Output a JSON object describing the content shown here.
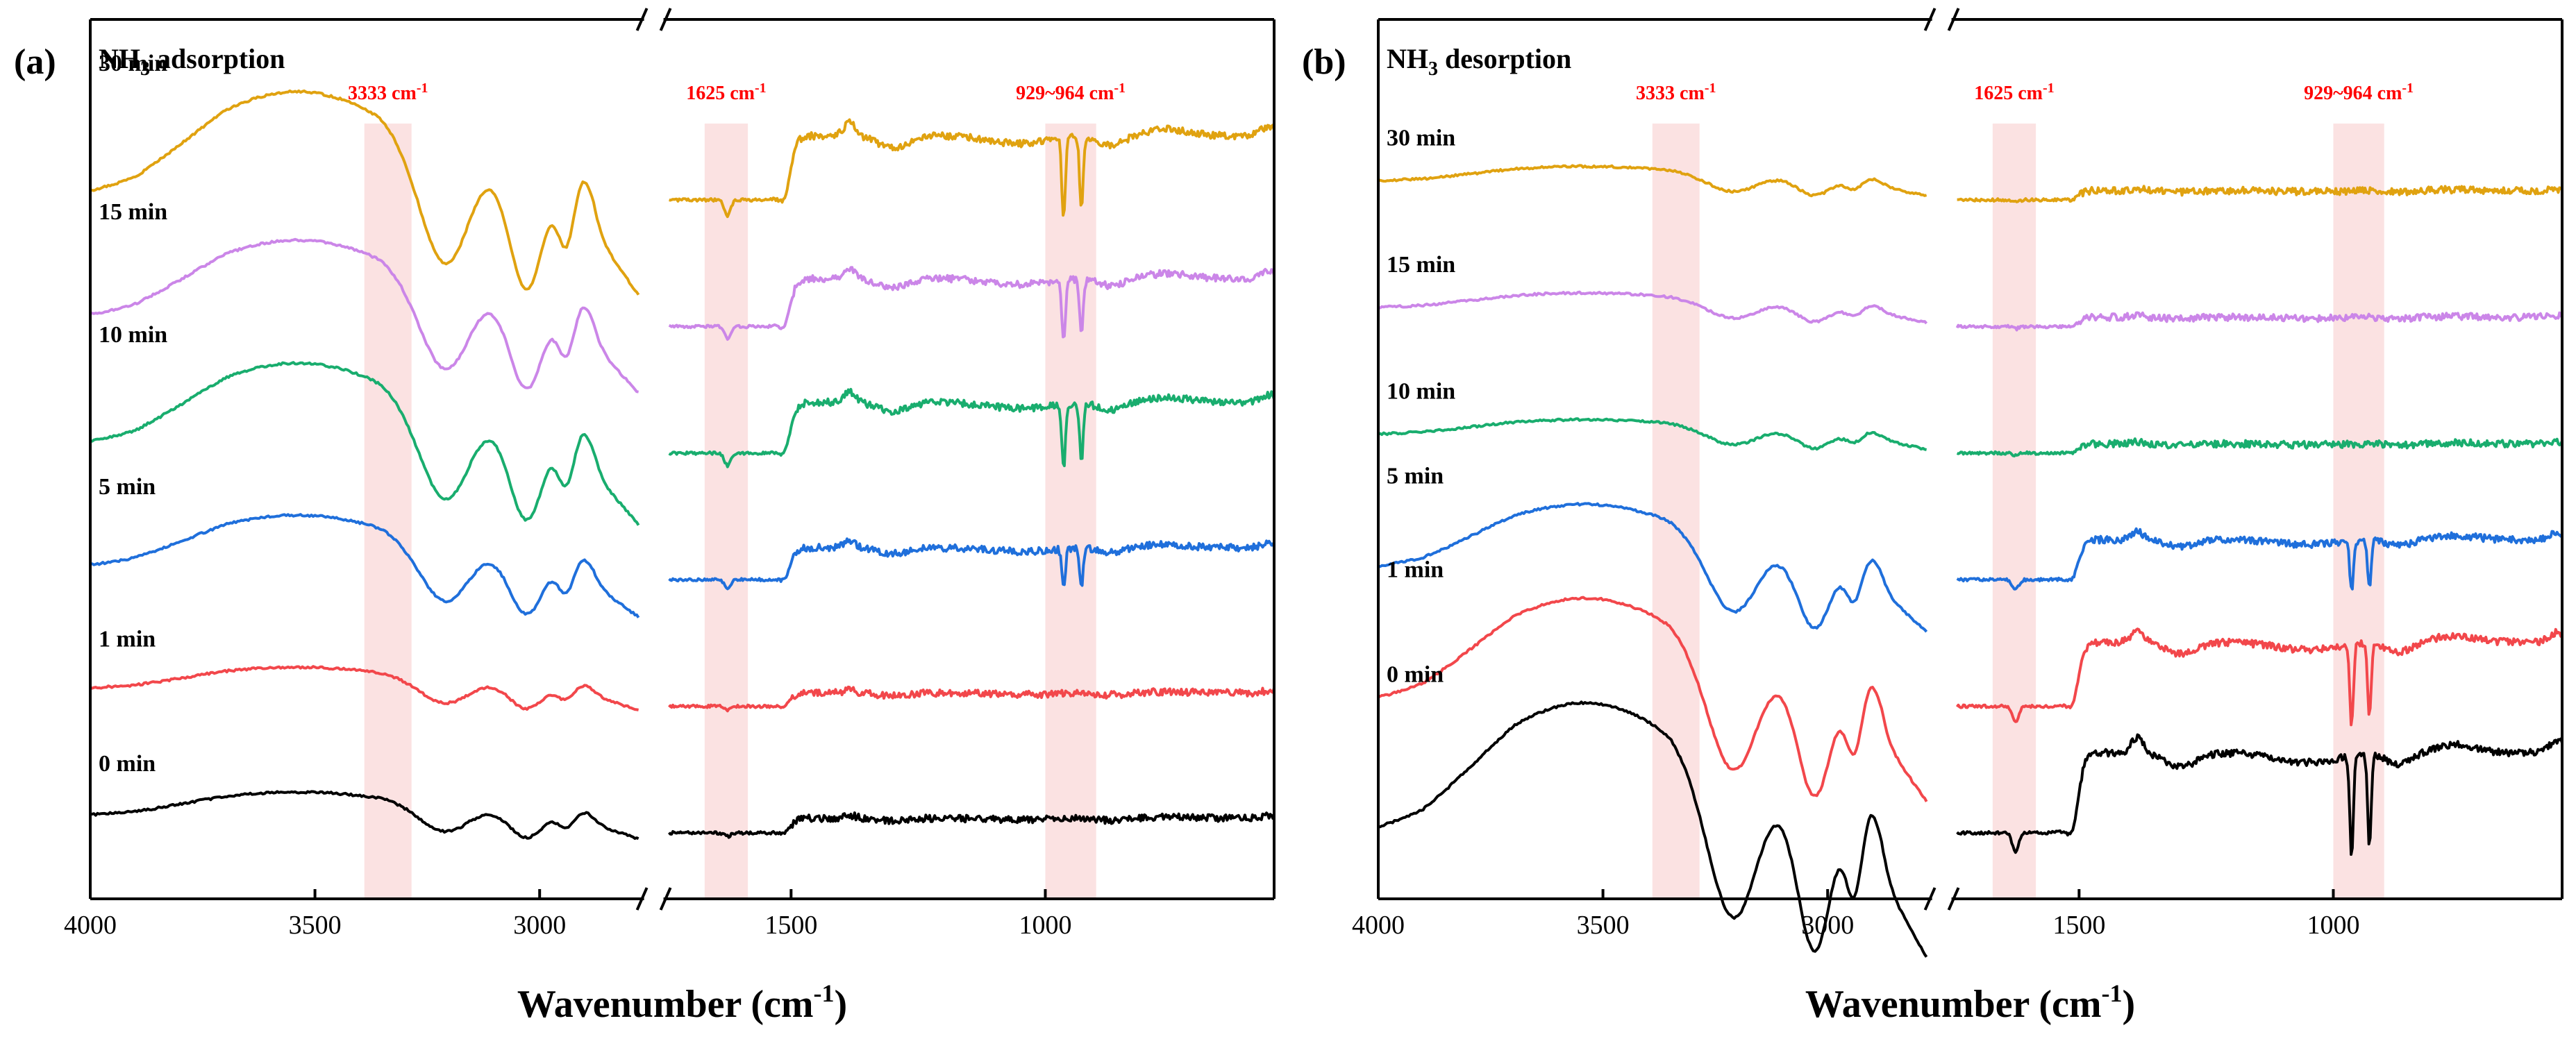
{
  "figure": {
    "panels": [
      {
        "panel_label": "(a)",
        "title": "NH3 adsorption",
        "title_main": "NH",
        "title_sub": "3",
        "title_rest": " adsorption"
      },
      {
        "panel_label": "(b)",
        "title": "NH3 desorption",
        "title_main": "NH",
        "title_sub": "3",
        "title_rest": " desorption"
      }
    ],
    "xlabel_main": "Wavenumber (cm",
    "xlabel_sup": "-1",
    "xlabel_close": ")",
    "colors": {
      "30 min": "#E0A210",
      "15 min": "#CB86E8",
      "10 min": "#19AD6E",
      "5 min": "#1F6FDB",
      "1 min": "#F2474B",
      "0 min": "#000000",
      "band": "#F9D6D6",
      "band_label": "#FF0000"
    }
  },
  "chart_data": [
    {
      "type": "line",
      "title": "(a) NH3 adsorption",
      "xlabel": "Wavenumber (cm-1)",
      "ylabel": "",
      "x_reversed": true,
      "broken_axis": {
        "left_range": [
          4000,
          2780
        ],
        "right_range": [
          1740,
          550
        ]
      },
      "xticks": [
        4000,
        3500,
        3000,
        1500,
        1000
      ],
      "bands": [
        {
          "label": "3333 cm-1",
          "label_main": "3333 cm",
          "label_sup": "-1",
          "range": [
            3390,
            3285
          ]
        },
        {
          "label": "1625 cm-1",
          "label_main": "1625 cm",
          "label_sup": "-1",
          "range": [
            1670,
            1585
          ]
        },
        {
          "label": "929~964 cm-1",
          "label_main": "929~964 cm",
          "label_sup": "-1",
          "range": [
            1000,
            900
          ]
        }
      ],
      "series": [
        {
          "name": "30 min",
          "offset": 5,
          "amplitude": 2.4
        },
        {
          "name": "15 min",
          "offset": 4,
          "amplitude": 1.8
        },
        {
          "name": "10 min",
          "offset": 3,
          "amplitude": 1.9
        },
        {
          "name": "5 min",
          "offset": 2,
          "amplitude": 1.2
        },
        {
          "name": "1 min",
          "offset": 1,
          "amplitude": 0.5
        },
        {
          "name": "0 min",
          "offset": 0,
          "amplitude": 0.55
        }
      ]
    },
    {
      "type": "line",
      "title": "(b) NH3 desorption",
      "xlabel": "Wavenumber (cm-1)",
      "ylabel": "",
      "x_reversed": true,
      "broken_axis": {
        "left_range": [
          4000,
          2780
        ],
        "right_range": [
          1740,
          550
        ]
      },
      "xticks": [
        4000,
        3500,
        3000,
        1500,
        1000
      ],
      "bands": [
        {
          "label": "3333 cm-1",
          "label_main": "3333 cm",
          "label_sup": "-1",
          "range": [
            3390,
            3285
          ]
        },
        {
          "label": "1625 cm-1",
          "label_main": "1625 cm",
          "label_sup": "-1",
          "range": [
            1670,
            1585
          ]
        },
        {
          "label": "929~964 cm-1",
          "label_main": "929~964 cm",
          "label_sup": "-1",
          "range": [
            1000,
            900
          ]
        }
      ],
      "series": [
        {
          "name": "30 min",
          "offset": 5,
          "amplitude": 0.35
        },
        {
          "name": "15 min",
          "offset": 4,
          "amplitude": 0.35
        },
        {
          "name": "10 min",
          "offset": 3,
          "amplitude": 0.35
        },
        {
          "name": "5 min",
          "offset": 2,
          "amplitude": 1.5
        },
        {
          "name": "1 min",
          "offset": 1,
          "amplitude": 2.4
        },
        {
          "name": "0 min",
          "offset": 0,
          "amplitude": 3.0
        }
      ]
    }
  ]
}
